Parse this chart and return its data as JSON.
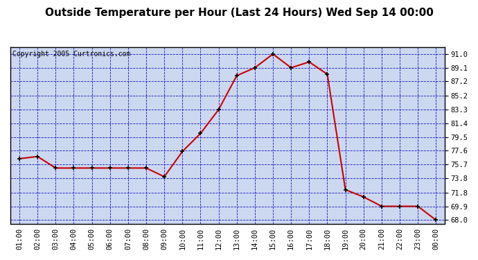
{
  "title": "Outside Temperature per Hour (Last 24 Hours) Wed Sep 14 00:00",
  "copyright": "Copyright 2005 Curtronics.com",
  "hours": [
    "01:00",
    "02:00",
    "03:00",
    "04:00",
    "05:00",
    "06:00",
    "07:00",
    "08:00",
    "09:00",
    "10:00",
    "11:00",
    "12:00",
    "13:00",
    "14:00",
    "15:00",
    "16:00",
    "17:00",
    "18:00",
    "19:00",
    "20:00",
    "21:00",
    "22:00",
    "23:00",
    "00:00"
  ],
  "temperatures": [
    76.5,
    76.8,
    75.2,
    75.2,
    75.2,
    75.2,
    75.2,
    75.2,
    74.0,
    77.5,
    80.0,
    83.3,
    88.0,
    89.1,
    91.0,
    89.1,
    89.9,
    88.2,
    72.2,
    71.2,
    69.9,
    69.9,
    69.9,
    68.0
  ],
  "yticks": [
    68.0,
    69.9,
    71.8,
    73.8,
    75.7,
    77.6,
    79.5,
    81.4,
    83.3,
    85.2,
    87.2,
    89.1,
    91.0
  ],
  "ylim": [
    67.5,
    92.0
  ],
  "line_color": "#cc0000",
  "marker_color": "#000000",
  "bg_color": "#ffffff",
  "grid_color": "#0000bb",
  "title_fontsize": 11,
  "copyright_fontsize": 7,
  "tick_fontsize": 7.5,
  "axes_bg_color": "#ccd8f0",
  "border_color": "#000000"
}
